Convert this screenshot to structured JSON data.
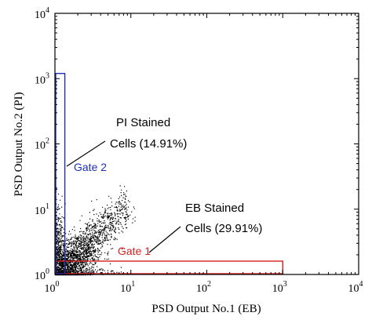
{
  "chart_data": {
    "type": "scatter",
    "title": "",
    "xlabel": "PSD Output No.1 (EB)",
    "ylabel": "PSD Output No.2 (PI)",
    "xscale": "log",
    "yscale": "log",
    "xlim": [
      1,
      10000
    ],
    "ylim": [
      1,
      10000
    ],
    "grid": false,
    "x_ticks": [
      {
        "base": "10",
        "exp": "0"
      },
      {
        "base": "10",
        "exp": "1"
      },
      {
        "base": "10",
        "exp": "2"
      },
      {
        "base": "10",
        "exp": "3"
      },
      {
        "base": "10",
        "exp": "4"
      }
    ],
    "y_ticks": [
      {
        "base": "10",
        "exp": "0"
      },
      {
        "base": "10",
        "exp": "1"
      },
      {
        "base": "10",
        "exp": "2"
      },
      {
        "base": "10",
        "exp": "3"
      },
      {
        "base": "10",
        "exp": "4"
      }
    ],
    "gates": [
      {
        "name": "Gate 1",
        "color": "#d62020",
        "x_range": [
          1,
          1000
        ],
        "y_range": [
          1,
          1.6
        ]
      },
      {
        "name": "Gate 2",
        "color": "#1f2fb5",
        "x_range": [
          1,
          1.35
        ],
        "y_range": [
          1,
          1200
        ]
      }
    ],
    "annotations": [
      {
        "lines": [
          "PI Stained",
          "Cells (14.91%)"
        ],
        "pointer_to": [
          1.35,
          80
        ]
      },
      {
        "lines": [
          "EB Stained",
          "Cells (29.91%)"
        ],
        "pointer_to": [
          20,
          1.8
        ]
      }
    ],
    "point_cloud": {
      "color": "#000000",
      "x_log_range": [
        0,
        1.05
      ],
      "y_log_range": [
        0,
        1.65
      ],
      "count": 3800
    }
  }
}
